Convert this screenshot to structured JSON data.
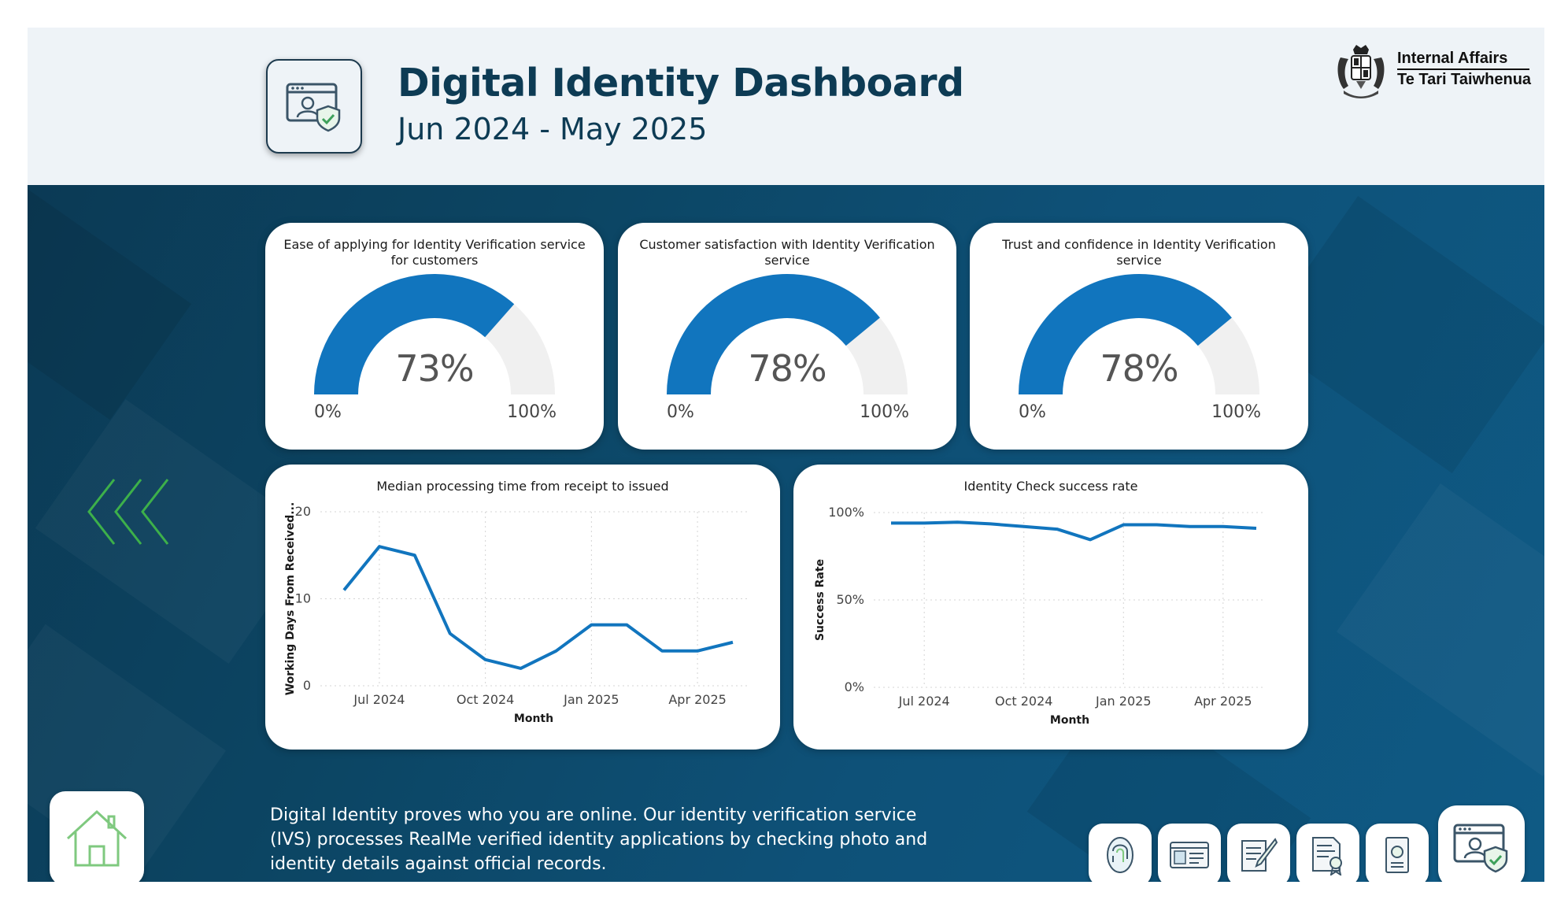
{
  "header": {
    "title": "Digital Identity Dashboard",
    "subtitle": "Jun 2024 - May 2025",
    "logo": {
      "line1": "Internal Affairs",
      "line2": "Te Tari Taiwhenua"
    },
    "icon": "identity-verification-icon"
  },
  "gauges": [
    {
      "title": "Ease of applying for Identity Verification service for customers",
      "value": 73,
      "value_label": "73%",
      "min_label": "0%",
      "max_label": "100%",
      "color": "#1175be"
    },
    {
      "title": "Customer satisfaction with Identity Verification service",
      "value": 78,
      "value_label": "78%",
      "min_label": "0%",
      "max_label": "100%",
      "color": "#1175be"
    },
    {
      "title": "Trust and confidence in Identity Verification service",
      "value": 78,
      "value_label": "78%",
      "min_label": "0%",
      "max_label": "100%",
      "color": "#1175be"
    }
  ],
  "chart_data": [
    {
      "type": "line",
      "title": "Median processing time from receipt to issued",
      "xlabel": "Month",
      "ylabel": "Working Days From Received...",
      "x": [
        "Jun 2024",
        "Jul 2024",
        "Aug 2024",
        "Sep 2024",
        "Oct 2024",
        "Nov 2024",
        "Dec 2024",
        "Jan 2025",
        "Feb 2025",
        "Mar 2025",
        "Apr 2025",
        "May 2025"
      ],
      "x_ticks": [
        "Jul 2024",
        "Oct 2024",
        "Jan 2025",
        "Apr 2025"
      ],
      "y_ticks": [
        "0",
        "10",
        "20"
      ],
      "ylim": [
        0,
        20
      ],
      "series": [
        {
          "values": [
            11,
            16,
            15,
            6,
            3,
            2,
            4,
            7,
            7,
            4,
            4,
            5
          ]
        }
      ],
      "color": "#1175be",
      "grid": true
    },
    {
      "type": "line",
      "title": "Identity Check success rate",
      "xlabel": "Month",
      "ylabel": "Success Rate",
      "x": [
        "Jun 2024",
        "Jul 2024",
        "Aug 2024",
        "Sep 2024",
        "Oct 2024",
        "Nov 2024",
        "Dec 2024",
        "Jan 2025",
        "Feb 2025",
        "Mar 2025",
        "Apr 2025",
        "May 2025"
      ],
      "x_ticks": [
        "Jul 2024",
        "Oct 2024",
        "Jan 2025",
        "Apr 2025"
      ],
      "y_ticks": [
        "0%",
        "50%",
        "100%"
      ],
      "ylim": [
        0,
        100
      ],
      "series": [
        {
          "values": [
            94,
            94,
            94.5,
            93.5,
            92,
            90.5,
            84.5,
            93,
            93,
            92,
            92,
            91
          ]
        }
      ],
      "color": "#1175be",
      "grid": true
    }
  ],
  "description": "Digital Identity proves who you are online. Our identity verification service (IVS) processes RealMe verified identity applications by checking photo and identity details against official records.",
  "nav": {
    "home_icon": "home-icon",
    "buttons": [
      {
        "name": "nav-fingerprint-button",
        "icon": "fingerprint-icon"
      },
      {
        "name": "nav-id-card-button",
        "icon": "id-card-icon"
      },
      {
        "name": "nav-document-sign-button",
        "icon": "document-sign-icon"
      },
      {
        "name": "nav-certificate-button",
        "icon": "certificate-icon"
      },
      {
        "name": "nav-passport-button",
        "icon": "passport-icon"
      },
      {
        "name": "nav-identity-verification-button",
        "icon": "identity-verification-icon"
      }
    ]
  },
  "colors": {
    "accent": "#1175be",
    "header_bg": "#eef3f7",
    "title": "#0d3b54",
    "chevron": "#3db04a",
    "gauge_track": "#f0f0f0"
  }
}
